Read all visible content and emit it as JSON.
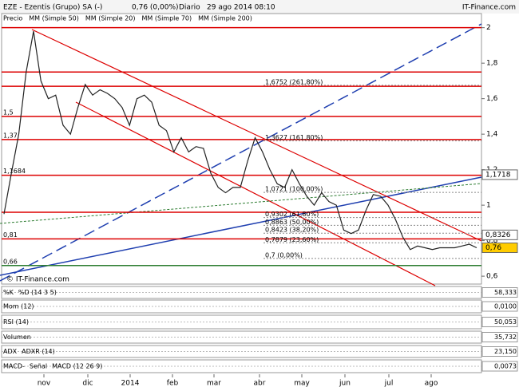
{
  "chart_data": {
    "type": "line",
    "title": "EZE - Ezentis (Grupo) SA (-)",
    "quote": "0,76 (0,00%)",
    "period": "Diario",
    "timestamp": "29 ago 2014 08:10",
    "brand": "IT-Finance.com",
    "watermark": "© IT-Finance.com",
    "legend": [
      {
        "name": "Precio",
        "color": "#000000"
      },
      {
        "name": "MM (Simple 50)",
        "color": "#a0a0a0"
      },
      {
        "name": "MM (Simple 20)",
        "color": "#cc0000"
      },
      {
        "name": "MM (Simple 70)",
        "color": "#1f3fb0"
      },
      {
        "name": "MM (Simple 200)",
        "color": "#2e7d32"
      }
    ],
    "series": [
      {
        "name": "Precio",
        "color": "#222222",
        "values": [
          0.95,
          1.18,
          1.4,
          1.75,
          1.98,
          1.7,
          1.6,
          1.62,
          1.45,
          1.4,
          1.55,
          1.68,
          1.62,
          1.65,
          1.63,
          1.6,
          1.55,
          1.45,
          1.6,
          1.62,
          1.58,
          1.45,
          1.42,
          1.3,
          1.38,
          1.3,
          1.33,
          1.32,
          1.18,
          1.1,
          1.07,
          1.1,
          1.1,
          1.25,
          1.38,
          1.3,
          1.2,
          1.12,
          1.1,
          1.2,
          1.12,
          1.05,
          1.0,
          1.07,
          1.02,
          1.0,
          0.86,
          0.84,
          0.86,
          0.97,
          1.06,
          1.05,
          1.0,
          0.92,
          0.82,
          0.75,
          0.77,
          0.76,
          0.75,
          0.76,
          0.76,
          0.76,
          0.77,
          0.78,
          0.76
        ]
      }
    ],
    "x_labels": [
      "nov",
      "dic",
      "2014",
      "feb",
      "mar",
      "abr",
      "may",
      "jun",
      "jul",
      "ago"
    ],
    "ylim": [
      0.56,
      2.03
    ],
    "yticks": [
      {
        "value": 0.6,
        "label": "0,6"
      },
      {
        "value": 0.8,
        "label": "0,8"
      },
      1,
      {
        "value": 1.2,
        "label": "1,2"
      },
      {
        "value": 1.4,
        "label": "1,4"
      },
      {
        "value": 1.6,
        "label": "1,6"
      },
      {
        "value": 1.8,
        "label": "1,8"
      },
      2
    ],
    "levels": [
      {
        "value": 1.5,
        "label": "1,5"
      },
      {
        "value": 1.37,
        "label": "1,37"
      },
      {
        "value": 1.1684,
        "label": "1,1684"
      },
      {
        "value": 0.81,
        "label": "0,81"
      },
      {
        "value": 0.66,
        "label": "0,66"
      }
    ],
    "extra_levels": [
      2,
      1.75,
      1.67,
      0.96
    ],
    "fib": [
      {
        "value": 1.6752,
        "label": "1,6752 (261,80%)"
      },
      {
        "value": 1.3627,
        "label": "1,3627 (161,80%)"
      },
      {
        "value": 1.0721,
        "label": "1,0721 (100,00%)"
      },
      {
        "value": 0.9302,
        "label": "0,9302 (61,80%)"
      },
      {
        "value": 0.8863,
        "label": "0,8863 (50,00%)"
      },
      {
        "value": 0.8423,
        "label": "0,8423 (38,20%)"
      },
      {
        "value": 0.7879,
        "label": "0,7879 (23,60%)"
      },
      {
        "value": 0.7,
        "label": "0,7 (0,00%)"
      }
    ],
    "markers": [
      {
        "value": 1.1718,
        "label": "1,1718"
      },
      {
        "value": 0.8326,
        "label": "0,8326"
      },
      {
        "value": 0.76,
        "label": "0,76"
      }
    ],
    "panels": [
      {
        "labels": [
          {
            "text": "%K",
            "color": "#000000"
          },
          {
            "text": "%D (14 3 5)",
            "color": "#cc0000"
          }
        ],
        "readout": "58,333"
      },
      {
        "labels": [
          {
            "text": "Mom (12)",
            "color": "#000000"
          }
        ],
        "readout": "0,0100"
      },
      {
        "labels": [
          {
            "text": "RSI (14)",
            "color": "#000000"
          }
        ],
        "readout": "50,053"
      },
      {
        "labels": [
          {
            "text": "Volumen",
            "color": "#2e7d32"
          }
        ],
        "readout": "35,732"
      },
      {
        "labels": [
          {
            "text": "ADX",
            "color": "#000000"
          },
          {
            "text": "ADXR (14)",
            "color": "#cc0000"
          }
        ],
        "readout": "23,150"
      },
      {
        "labels": [
          {
            "text": "MACD-",
            "color": "#2e7d32"
          },
          {
            "text": "Señal",
            "color": "#cc0000"
          },
          {
            "text": "MACD (12 26 9)",
            "color": "#1f3fb0"
          }
        ],
        "readout": "0,0073"
      }
    ]
  }
}
